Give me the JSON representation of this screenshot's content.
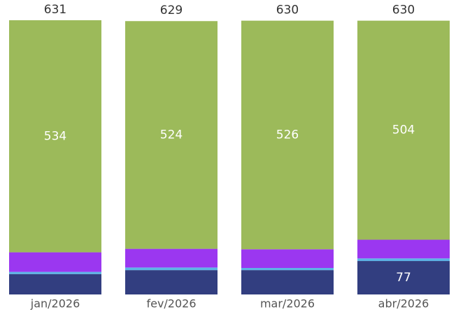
{
  "chart_data": {
    "type": "stacked-bar",
    "categories": [
      "jan/2026",
      "fev/2026",
      "mar/2026",
      "abr/2026"
    ],
    "series": [
      {
        "color": "#323e80",
        "values": [
          47,
          56,
          56,
          77
        ]
      },
      {
        "color": "#5db4e6",
        "values": [
          5,
          6,
          5,
          6
        ]
      },
      {
        "color": "#9b37f0",
        "values": [
          45,
          43,
          43,
          43
        ]
      },
      {
        "color": "#9cba5a",
        "values": [
          534,
          524,
          526,
          504
        ]
      }
    ],
    "totals": [
      631,
      629,
      630,
      630
    ]
  }
}
